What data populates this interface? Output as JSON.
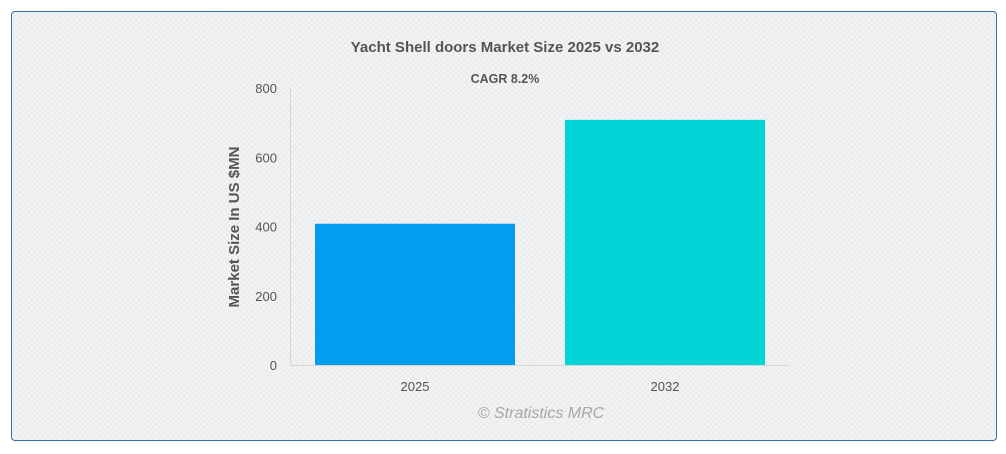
{
  "chart_data": {
    "type": "bar",
    "title": "Yacht Shell doors Market Size 2025 vs 2032",
    "subtitle": "CAGR 8.2%",
    "xlabel": "",
    "ylabel": "Market Size In US $MN",
    "categories": [
      "2025",
      "2032"
    ],
    "values": [
      408,
      708
    ],
    "colors": [
      "#039def",
      "#00d4d4"
    ],
    "ylim": [
      0,
      800
    ],
    "yticks": [
      0,
      200,
      400,
      600,
      800
    ],
    "grid": false,
    "legend": "none"
  },
  "watermark": "© Stratistics MRC"
}
